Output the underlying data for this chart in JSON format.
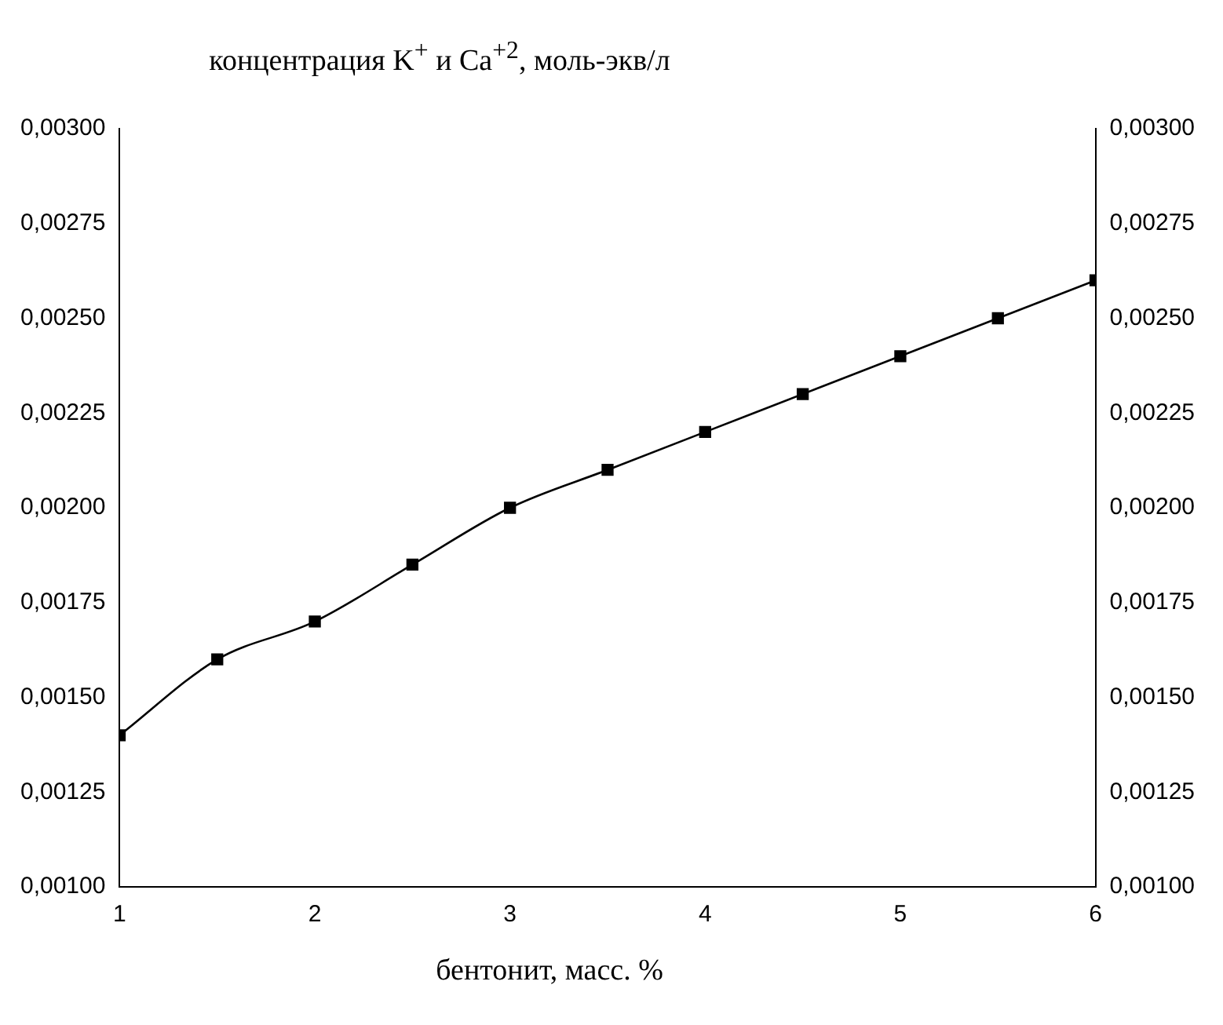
{
  "chart_data": {
    "type": "line",
    "title": "концентрация K$^{+}$ и Ca$^{+2}$, моль-экв/л",
    "xlabel": "бентонит, масс. %",
    "x": [
      1,
      1.5,
      2,
      2.5,
      3,
      3.5,
      4,
      4.5,
      5,
      5.5,
      6
    ],
    "series": [
      {
        "color": "#000000",
        "values": [
          0.0014,
          0.0016,
          0.0017,
          0.00185,
          0.002,
          0.0021,
          0.0022,
          0.0023,
          0.0024,
          0.0025,
          0.0026
        ]
      }
    ],
    "xlim": [
      1,
      6
    ],
    "xticks": [
      1,
      2,
      3,
      4,
      5,
      6
    ],
    "ylim": [
      0.001,
      0.003
    ],
    "yticks": [
      {
        "value": 0.001,
        "label": "0,00100"
      },
      {
        "value": 0.00125,
        "label": "0,00125"
      },
      {
        "value": 0.0015,
        "label": "0,00150"
      },
      {
        "value": 0.00175,
        "label": "0,00175"
      },
      {
        "value": 0.002,
        "label": "0,00200"
      },
      {
        "value": 0.00225,
        "label": "0,00225"
      },
      {
        "value": 0.0025,
        "label": "0,00250"
      },
      {
        "value": 0.00275,
        "label": "0,00275"
      },
      {
        "value": 0.003,
        "label": "0,00300"
      }
    ],
    "y2lim": [
      0.001,
      0.003
    ],
    "y2ticks": [
      {
        "value": 0.001,
        "label": "0,00100"
      },
      {
        "value": 0.00125,
        "label": "0,00125"
      },
      {
        "value": 0.0015,
        "label": "0,00150"
      },
      {
        "value": 0.00175,
        "label": "0,00175"
      },
      {
        "value": 0.002,
        "label": "0,00200"
      },
      {
        "value": 0.00225,
        "label": "0,00225"
      },
      {
        "value": 0.0025,
        "label": "0,00250"
      },
      {
        "value": 0.00275,
        "label": "0,00275"
      },
      {
        "value": 0.003,
        "label": "0,00300"
      }
    ],
    "grid": false,
    "legend": false,
    "marker": "square",
    "line_style": "solid"
  }
}
